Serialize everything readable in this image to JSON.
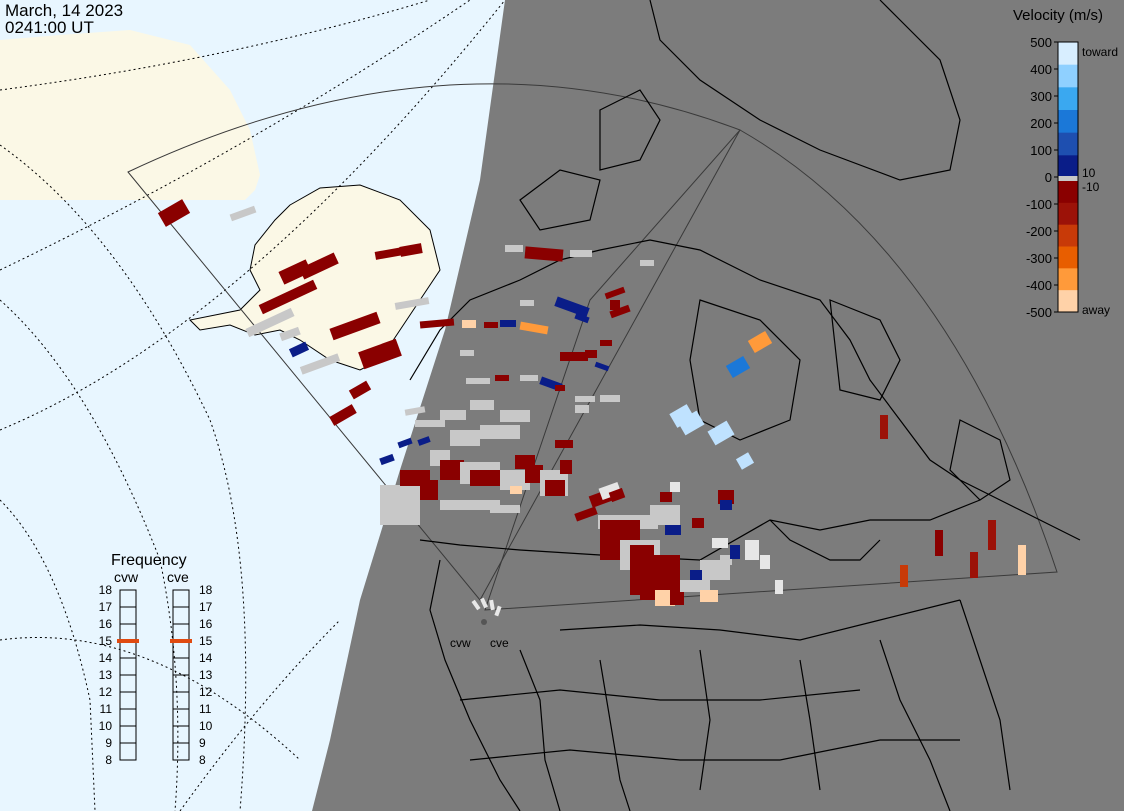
{
  "header": {
    "date": "March, 14 2023",
    "time": "0241:00 UT"
  },
  "legend": {
    "title": "Velocity (m/s)",
    "ticks": [
      "500",
      "400",
      "300",
      "200",
      "100",
      "0",
      "-100",
      "-200",
      "-300",
      "-400",
      "-500"
    ],
    "toward_label": "toward",
    "away_label": "away",
    "threshold_pos": "10",
    "threshold_neg": "-10",
    "colors": {
      "toward": [
        "#d8eeff",
        "#8fd0ff",
        "#3aa8f0",
        "#1b78d8",
        "#1e4fb0",
        "#0a1d88"
      ],
      "away": [
        "#8a0000",
        "#9c1208",
        "#c83a08",
        "#e85e00",
        "#ff9a3a",
        "#ffd2a8"
      ],
      "ground_scatter": "#c8c8c8"
    }
  },
  "frequency": {
    "title": "Frequency",
    "radars": [
      {
        "name": "cvw",
        "value": 15
      },
      {
        "name": "cve",
        "value": 15
      }
    ],
    "scale": [
      "18",
      "17",
      "16",
      "15",
      "14",
      "13",
      "12",
      "11",
      "10",
      "9",
      "8"
    ],
    "marker_color": "#e04a10"
  },
  "map": {
    "night_color": "#7c7c7c",
    "day_ocean_color": "#e8f6ff",
    "day_land_color": "#fbf8e6",
    "radar_sites": [
      "cvw",
      "cve"
    ]
  }
}
